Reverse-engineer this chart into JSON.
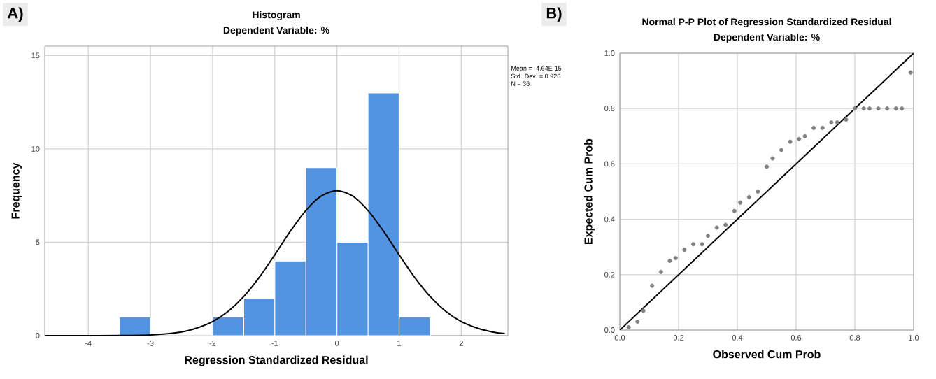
{
  "chart_data": [
    {
      "type": "histogram",
      "title": "Histogram",
      "subtitle": "Dependent Variable: %",
      "xlabel": "Regression Standardized Residual",
      "ylabel": "Frequency",
      "bins": [
        -3.5,
        -3,
        -2.5,
        -2,
        -1.5,
        -1,
        -0.5,
        0,
        0.5,
        1,
        1.5
      ],
      "values": [
        1,
        0,
        0,
        1,
        2,
        4,
        9,
        5,
        13,
        1
      ],
      "color": "#5294e2",
      "series": [
        {
          "type": "line",
          "color": "#000000",
          "x": [
            -4.7,
            -4,
            -3.5,
            -3,
            -2.5,
            -2.25,
            -2,
            -1.75,
            -1.5,
            -1.25,
            -1,
            -0.75,
            -0.5,
            -0.25,
            0,
            0.25,
            0.5,
            0.75,
            1,
            1.25,
            1.5,
            1.75,
            2,
            2.25,
            2.5,
            2.7
          ],
          "values": [
            0,
            0,
            0.01,
            0.04,
            0.2,
            0.41,
            0.75,
            1.3,
            2.09,
            3.12,
            4.33,
            5.59,
            6.7,
            7.48,
            7.76,
            7.48,
            6.7,
            5.59,
            4.33,
            3.12,
            2.09,
            1.3,
            0.75,
            0.41,
            0.2,
            0.11
          ]
        }
      ],
      "xlim": [
        -4.7,
        2.75
      ],
      "ylim": [
        0,
        15.5
      ],
      "xticks": [
        -4,
        -3,
        -2,
        -1,
        0,
        1,
        2
      ],
      "yticks": [
        0,
        5,
        10,
        15
      ],
      "grid": true,
      "annotations": [
        "A)",
        "Mean = -4.64E-15",
        "Std. Dev. = 0.926",
        "N = 36"
      ]
    },
    {
      "type": "scatter",
      "title": "Normal P-P Plot of Regression Standardized Residual",
      "subtitle": "Dependent Variable: %",
      "xlabel": "Observed Cum Prob",
      "ylabel": "Expected Cum Prob",
      "series": [
        {
          "type": "scatter",
          "color": "#808080",
          "x": [
            0.03,
            0.06,
            0.08,
            0.11,
            0.14,
            0.17,
            0.19,
            0.22,
            0.25,
            0.28,
            0.3,
            0.33,
            0.36,
            0.39,
            0.41,
            0.44,
            0.47,
            0.5,
            0.52,
            0.55,
            0.58,
            0.61,
            0.63,
            0.66,
            0.69,
            0.72,
            0.74,
            0.77,
            0.8,
            0.83,
            0.85,
            0.88,
            0.91,
            0.94,
            0.96,
            0.99
          ],
          "values": [
            0.01,
            0.03,
            0.07,
            0.16,
            0.21,
            0.25,
            0.26,
            0.29,
            0.31,
            0.31,
            0.34,
            0.37,
            0.38,
            0.43,
            0.46,
            0.48,
            0.5,
            0.59,
            0.62,
            0.65,
            0.68,
            0.69,
            0.7,
            0.73,
            0.73,
            0.75,
            0.75,
            0.76,
            0.8,
            0.8,
            0.8,
            0.8,
            0.8,
            0.8,
            0.8,
            0.93
          ]
        },
        {
          "type": "line",
          "color": "#000000",
          "x": [
            0,
            1
          ],
          "values": [
            0,
            1
          ]
        }
      ],
      "xlim": [
        0,
        1
      ],
      "ylim": [
        0,
        1
      ],
      "xticks": [
        {
          "value": 0,
          "label": "0.0"
        },
        {
          "value": 0.2,
          "label": "0.2"
        },
        {
          "value": 0.4,
          "label": "0.4"
        },
        {
          "value": 0.6,
          "label": "0.6"
        },
        {
          "value": 0.8,
          "label": "0.8"
        },
        {
          "value": 1,
          "label": "1.0"
        }
      ],
      "yticks": [
        {
          "value": 0,
          "label": "0.0"
        },
        {
          "value": 0.2,
          "label": "0.2"
        },
        {
          "value": 0.4,
          "label": "0.4"
        },
        {
          "value": 0.6,
          "label": "0.6"
        },
        {
          "value": 0.8,
          "label": "0.8"
        },
        {
          "value": 1,
          "label": "1.0"
        }
      ],
      "grid": true,
      "annotations": [
        "B)"
      ]
    }
  ]
}
